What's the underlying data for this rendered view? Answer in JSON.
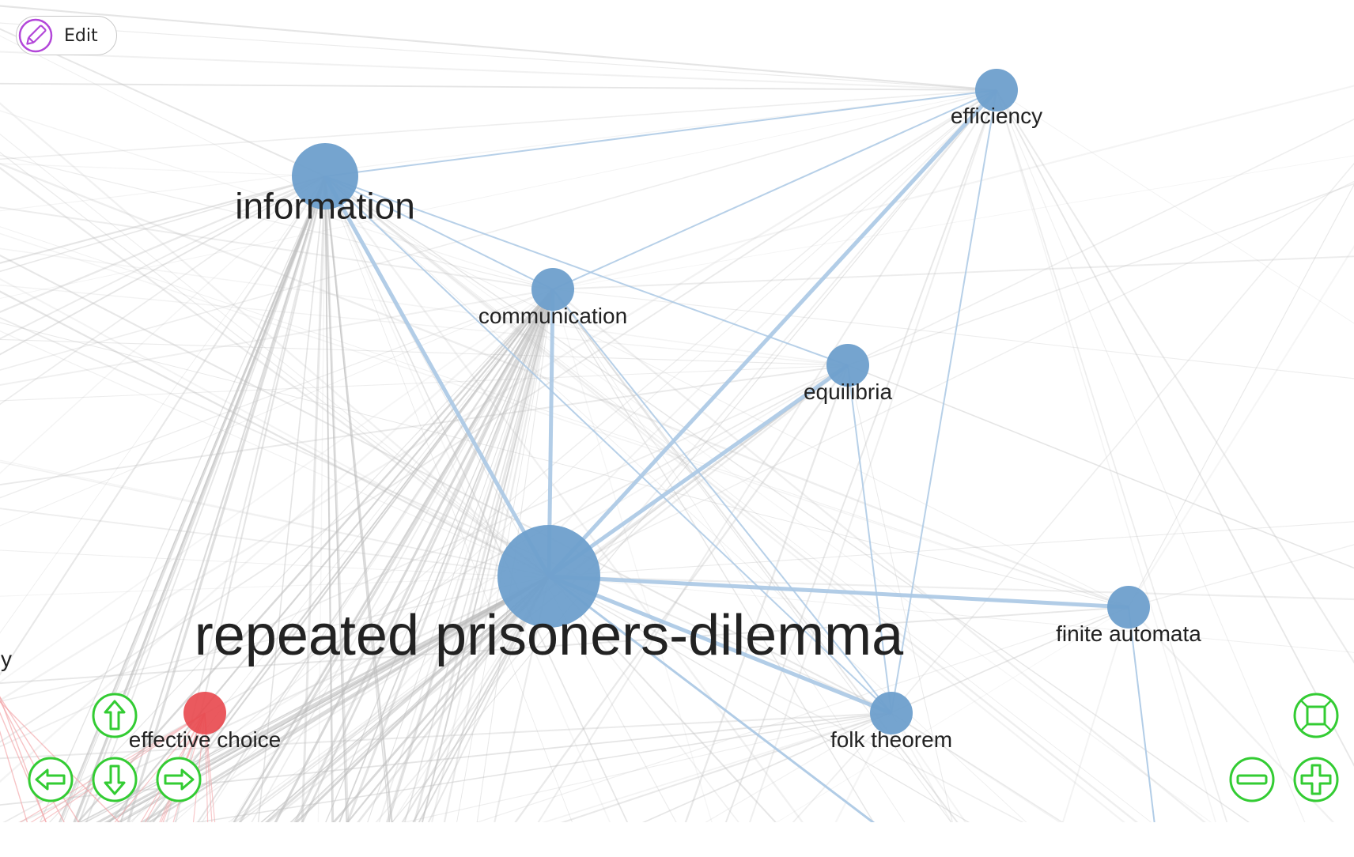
{
  "toolbar": {
    "edit_label": "Edit",
    "edit_icon": "pencil-icon"
  },
  "graph": {
    "colors": {
      "node_blue": "#6e9fcc",
      "node_red": "#e8474c",
      "edge_blue": "#aac8e4",
      "edge_gray": "#bdbdbd",
      "edge_red": "#f3a3a6",
      "nav_green": "#33cc33"
    },
    "nodes": [
      {
        "id": "information",
        "label": "information",
        "color": "blue",
        "weight": 3
      },
      {
        "id": "efficiency",
        "label": "efficiency",
        "color": "blue",
        "weight": 1
      },
      {
        "id": "communication",
        "label": "communication",
        "color": "blue",
        "weight": 1
      },
      {
        "id": "equilibria",
        "label": "equilibria",
        "color": "blue",
        "weight": 1
      },
      {
        "id": "rpd",
        "label": "repeated prisoners-dilemma",
        "color": "blue",
        "weight": 6
      },
      {
        "id": "finite-automata",
        "label": "finite automata",
        "color": "blue",
        "weight": 1
      },
      {
        "id": "folk-theorem",
        "label": "folk theorem",
        "color": "blue",
        "weight": 1
      },
      {
        "id": "effective-choice",
        "label": "effective choice",
        "color": "red",
        "weight": 1
      },
      {
        "id": "offscreen-left",
        "label": "y",
        "color": "blue",
        "weight": 1
      }
    ],
    "edges": [
      [
        "information",
        "efficiency"
      ],
      [
        "information",
        "communication"
      ],
      [
        "information",
        "equilibria"
      ],
      [
        "information",
        "rpd"
      ],
      [
        "information",
        "folk-theorem"
      ],
      [
        "communication",
        "efficiency"
      ],
      [
        "communication",
        "rpd"
      ],
      [
        "communication",
        "folk-theorem"
      ],
      [
        "equilibria",
        "rpd"
      ],
      [
        "equilibria",
        "folk-theorem"
      ],
      [
        "efficiency",
        "rpd"
      ],
      [
        "efficiency",
        "folk-theorem"
      ],
      [
        "rpd",
        "finite-automata"
      ],
      [
        "rpd",
        "folk-theorem"
      ]
    ]
  },
  "navigation": {
    "up": "arrow-up-icon",
    "down": "arrow-down-icon",
    "left": "arrow-left-icon",
    "right": "arrow-right-icon",
    "fit": "fit-screen-icon",
    "zoom_out": "zoom-out-icon",
    "zoom_in": "zoom-in-icon"
  }
}
